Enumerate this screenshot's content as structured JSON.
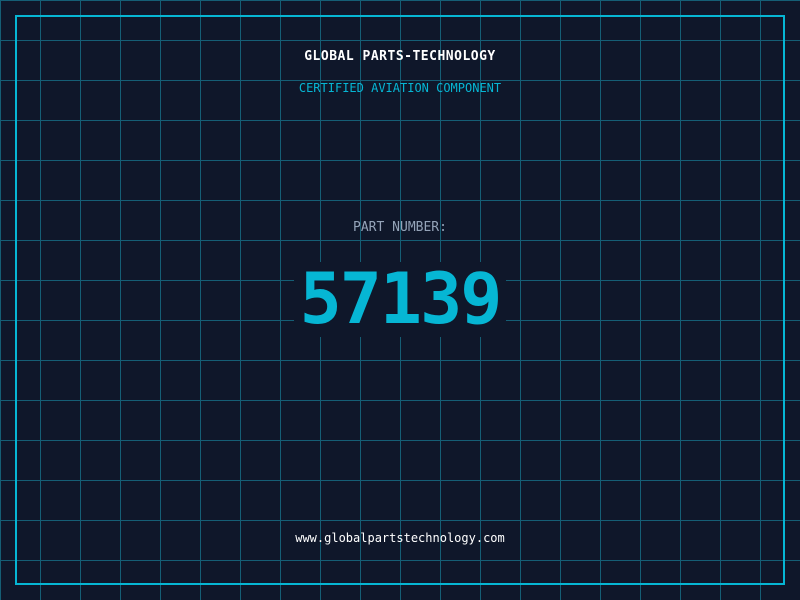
{
  "header": {
    "title": "GLOBAL PARTS-TECHNOLOGY",
    "subtitle": "CERTIFIED AVIATION COMPONENT"
  },
  "part": {
    "label": "PART NUMBER:",
    "number": "57139"
  },
  "footer": {
    "url": "www.globalpartstechnology.com"
  },
  "colors": {
    "background": "#0f172a",
    "accent": "#06b6d4",
    "grid": "#155e75"
  }
}
